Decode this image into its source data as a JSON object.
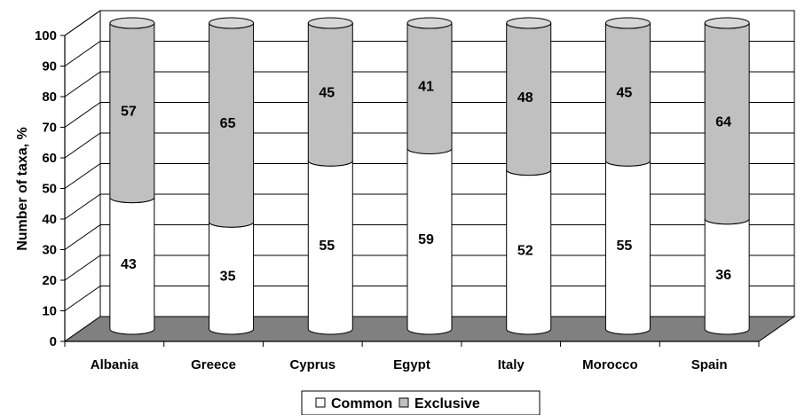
{
  "chart_data": {
    "type": "bar",
    "stacked": true,
    "style": "3d-cylinder",
    "categories": [
      "Albania",
      "Greece",
      "Cyprus",
      "Egypt",
      "Italy",
      "Morocco",
      "Spain"
    ],
    "series": [
      {
        "name": "Common",
        "values": [
          43,
          35,
          55,
          59,
          52,
          55,
          36
        ],
        "color": "#ffffff"
      },
      {
        "name": "Exclusive",
        "values": [
          57,
          65,
          45,
          41,
          48,
          45,
          64
        ],
        "color": "#c0c0c0"
      }
    ],
    "ylabel": "Number of taxa, %",
    "xlabel": "",
    "ylim": [
      0,
      100
    ],
    "yticks": [
      0,
      10,
      20,
      30,
      40,
      50,
      60,
      70,
      80,
      90,
      100
    ],
    "grid": true,
    "floor_color": "#808080",
    "legend": {
      "position": "bottom",
      "entries": [
        "Common",
        "Exclusive"
      ]
    }
  }
}
